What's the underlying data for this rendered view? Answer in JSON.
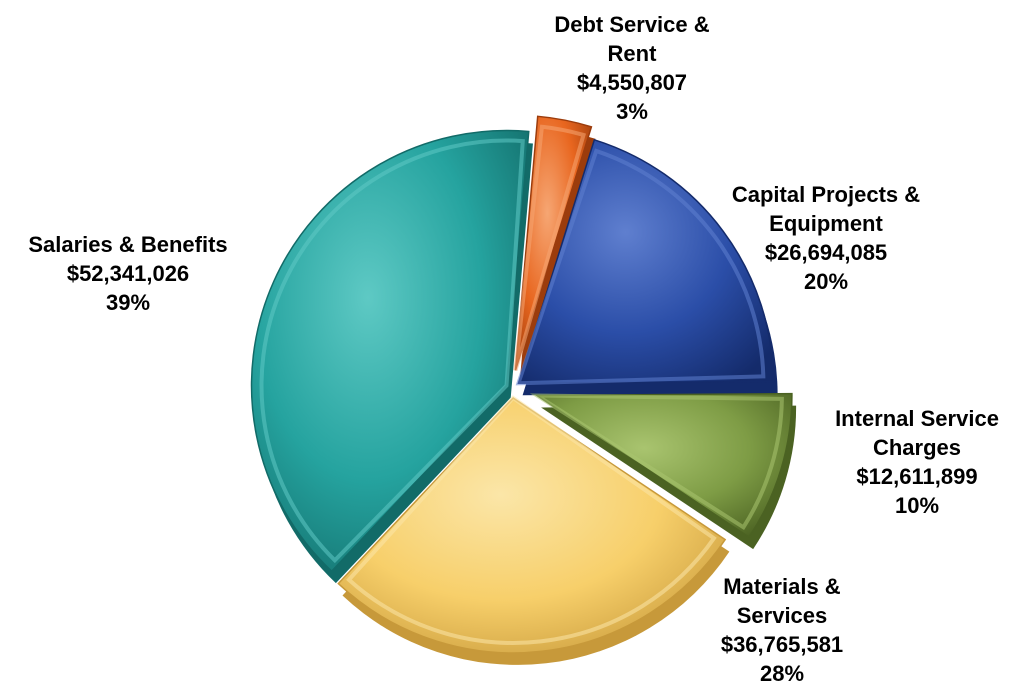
{
  "chart_data": {
    "type": "pie",
    "title": "",
    "total_style": "exploded-3d",
    "slices": [
      {
        "name_lines": [
          "Debt Service &",
          "Rent"
        ],
        "value": 4550807,
        "value_label": "$4,550,807",
        "percent": 3,
        "percent_label": "3%",
        "color": "#E8661F",
        "dark": "#9C3C0C",
        "light": "#F6A673"
      },
      {
        "name_lines": [
          "Capital Projects &",
          "Equipment"
        ],
        "value": 26694085,
        "value_label": "$26,694,085",
        "percent": 20,
        "percent_label": "20%",
        "color": "#2B4EA8",
        "dark": "#142B6B",
        "light": "#5F7FCF"
      },
      {
        "name_lines": [
          "Internal Service",
          "Charges"
        ],
        "value": 12611899,
        "value_label": "$12,611,899",
        "percent": 10,
        "percent_label": "10%",
        "color": "#7E9C45",
        "dark": "#4B6222",
        "light": "#A9C46F"
      },
      {
        "name_lines": [
          "Materials &",
          "Services"
        ],
        "value": 36765581,
        "value_label": "$36,765,581",
        "percent": 28,
        "percent_label": "28%",
        "color": "#F7CF6A",
        "dark": "#C7993A",
        "light": "#FBE6A8"
      },
      {
        "name_lines": [
          "Salaries & Benefits"
        ],
        "value": 52341026,
        "value_label": "$52,341,026",
        "percent": 39,
        "percent_label": "39%",
        "color": "#25A39F",
        "dark": "#126B68",
        "light": "#5EC9C4"
      }
    ]
  }
}
